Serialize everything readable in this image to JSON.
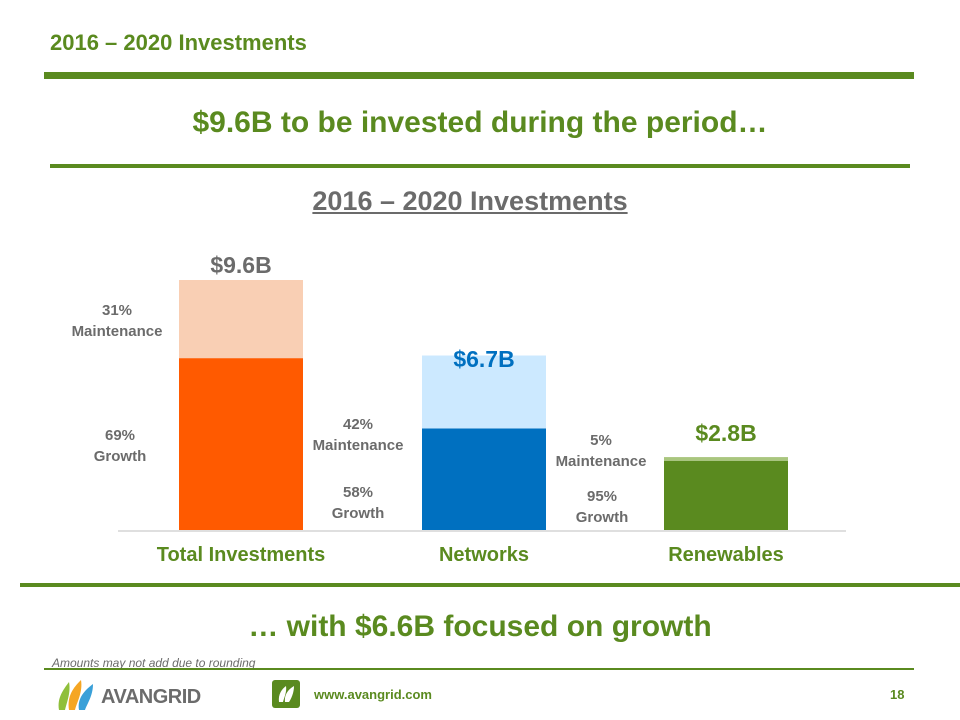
{
  "slide": {
    "title": "2016 – 2020 Investments",
    "headline": "$9.6B to be invested during the period…",
    "subheadline": "… with $6.6B focused on growth",
    "footnote": "Amounts may not add due to rounding",
    "website": "www.avangrid.com",
    "page_number": "18",
    "logo_text": "AVANGRID",
    "colors": {
      "brand_green": "#5a8a1f",
      "text_gray": "#6b6b6b",
      "networks_blue": "#0070c0"
    }
  },
  "chart_data": {
    "type": "bar",
    "title": "2016 – 2020 Investments",
    "categories": [
      "Total Investments",
      "Networks",
      "Renewables"
    ],
    "totals": [
      9.6,
      6.7,
      2.8
    ],
    "total_labels": [
      "$9.6B",
      "$6.7B",
      "$2.8B"
    ],
    "series": [
      {
        "name": "Growth",
        "values": [
          6.6,
          3.9,
          2.66
        ],
        "colors": [
          "#ff5a00",
          "#0070c0",
          "#5a8a1f"
        ]
      },
      {
        "name": "Maintenance",
        "values": [
          3.0,
          2.8,
          0.14
        ],
        "colors": [
          "#f9cfb4",
          "#cce9ff",
          "#a9c67e"
        ]
      }
    ],
    "total_label_colors": [
      "#6b6b6b",
      "#0070c0",
      "#5a8a1f"
    ],
    "segment_labels": {
      "maintenance": [
        {
          "pct": "31%",
          "text": "Maintenance"
        },
        {
          "pct": "42%",
          "text": "Maintenance"
        },
        {
          "pct": "5%",
          "text": "Maintenance"
        }
      ],
      "growth": [
        {
          "pct": "69%",
          "text": "Growth"
        },
        {
          "pct": "58%",
          "text": "Growth"
        },
        {
          "pct": "95%",
          "text": "Growth"
        }
      ]
    },
    "ylim": [
      0,
      9.6
    ],
    "grid": false
  }
}
